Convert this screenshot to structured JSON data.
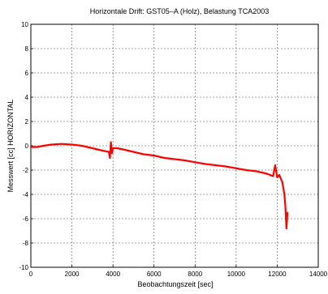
{
  "chart_data": {
    "type": "line",
    "title": "Horizontale Drift: GST05–A (Holz), Belastung TCA2003",
    "xlabel": "Beobachtungszeit [sec]",
    "ylabel": "Messwert [cc] HORIZONTAL",
    "xlim": [
      0,
      14000
    ],
    "ylim": [
      -10,
      10
    ],
    "xticks": [
      0,
      2000,
      4000,
      6000,
      8000,
      10000,
      12000,
      14000
    ],
    "yticks": [
      10,
      8,
      6,
      4,
      2,
      0,
      -2,
      -4,
      -6,
      -8,
      -10
    ],
    "grid": true,
    "series": [
      {
        "color": "#ff0000",
        "points": [
          [
            0,
            -0.1
          ],
          [
            300,
            -0.1
          ],
          [
            600,
            0.0
          ],
          [
            1000,
            0.1
          ],
          [
            1500,
            0.15
          ],
          [
            2000,
            0.1
          ],
          [
            2500,
            0.0
          ],
          [
            3000,
            -0.2
          ],
          [
            3500,
            -0.4
          ],
          [
            3800,
            -0.5
          ],
          [
            3850,
            -1.0
          ],
          [
            3900,
            0.3
          ],
          [
            3950,
            -0.6
          ],
          [
            4000,
            -0.2
          ],
          [
            4200,
            -0.2
          ],
          [
            4500,
            -0.3
          ],
          [
            5000,
            -0.5
          ],
          [
            5500,
            -0.7
          ],
          [
            6000,
            -0.8
          ],
          [
            6500,
            -1.0
          ],
          [
            7000,
            -1.1
          ],
          [
            7500,
            -1.2
          ],
          [
            8000,
            -1.35
          ],
          [
            8500,
            -1.5
          ],
          [
            9000,
            -1.6
          ],
          [
            9500,
            -1.7
          ],
          [
            10000,
            -1.85
          ],
          [
            10500,
            -2.0
          ],
          [
            11000,
            -2.1
          ],
          [
            11500,
            -2.3
          ],
          [
            11800,
            -2.5
          ],
          [
            11900,
            -1.6
          ],
          [
            12000,
            -2.6
          ],
          [
            12100,
            -2.4
          ],
          [
            12200,
            -2.8
          ],
          [
            12250,
            -3.0
          ],
          [
            12300,
            -3.5
          ],
          [
            12350,
            -4.0
          ],
          [
            12400,
            -5.0
          ],
          [
            12450,
            -6.8
          ],
          [
            12500,
            -5.5
          ]
        ]
      }
    ]
  }
}
